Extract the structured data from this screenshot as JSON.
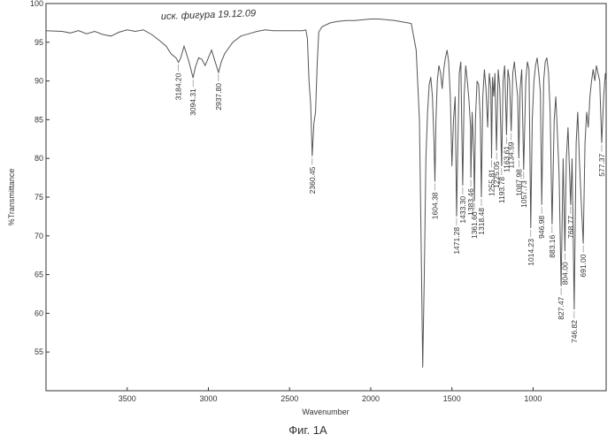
{
  "chart_data": {
    "type": "line",
    "title": "",
    "xlabel": "Wavenumber",
    "ylabel": "%Transmittance",
    "xlim": [
      4000,
      550
    ],
    "ylim": [
      50,
      100
    ],
    "x_ticks": [
      3500,
      3000,
      2500,
      2000,
      1500,
      1000
    ],
    "y_ticks": [
      55,
      60,
      65,
      70,
      75,
      80,
      85,
      90,
      95,
      100
    ],
    "grid": false,
    "legend": "none",
    "series": [
      {
        "color": "#555555",
        "x": [
          4000,
          3900,
          3850,
          3800,
          3750,
          3700,
          3650,
          3600,
          3550,
          3500,
          3450,
          3400,
          3350,
          3300,
          3260,
          3230,
          3200,
          3184.2,
          3170,
          3150,
          3120,
          3094.31,
          3080,
          3060,
          3040,
          3020,
          3000,
          2980,
          2960,
          2937.8,
          2920,
          2900,
          2850,
          2800,
          2750,
          2700,
          2650,
          2600,
          2550,
          2500,
          2450,
          2420,
          2400,
          2390,
          2380,
          2370,
          2360.45,
          2350,
          2340,
          2330,
          2320,
          2300,
          2250,
          2200,
          2150,
          2100,
          2050,
          2000,
          1950,
          1900,
          1850,
          1800,
          1770,
          1750,
          1720,
          1700,
          1690,
          1680,
          1670,
          1660,
          1650,
          1640,
          1630,
          1620,
          1610,
          1604.38,
          1598,
          1590,
          1580,
          1570,
          1560,
          1550,
          1540,
          1530,
          1520,
          1510,
          1500,
          1490,
          1480,
          1471.28,
          1465,
          1455,
          1445,
          1440,
          1433.3,
          1425,
          1415,
          1405,
          1395,
          1385,
          1383.46,
          1375,
          1365,
          1361.6,
          1355,
          1345,
          1335,
          1325,
          1318.48,
          1310,
          1300,
          1290,
          1280,
          1270,
          1260,
          1255.81,
          1250,
          1242,
          1235,
          1225.05,
          1215,
          1205,
          1193.78,
          1185,
          1175,
          1163.61,
          1155,
          1145,
          1134.59,
          1125,
          1115,
          1105,
          1095,
          1087.98,
          1080,
          1070,
          1057.73,
          1045,
          1035,
          1025,
          1014.23,
          1005,
          995,
          985,
          975,
          965,
          955,
          946.98,
          935,
          925,
          915,
          905,
          895,
          883.16,
          870,
          860,
          850,
          840,
          827.47,
          815,
          804,
          795,
          785,
          768.77,
          760,
          746.82,
          735,
          725,
          715,
          705,
          691,
          680,
          670,
          660,
          650,
          640,
          630,
          620,
          610,
          600,
          590,
          577.37,
          565,
          555,
          550
        ],
        "y": [
          96.5,
          96.4,
          96.2,
          96.5,
          96.1,
          96.4,
          96.0,
          95.8,
          96.3,
          96.6,
          96.4,
          96.6,
          96.0,
          95.2,
          94.5,
          93.5,
          93.0,
          92.4,
          93.0,
          94.5,
          92.5,
          90.4,
          91.8,
          93.0,
          92.8,
          92.0,
          93.0,
          94.0,
          92.6,
          91.1,
          92.5,
          93.5,
          95.0,
          95.8,
          96.1,
          96.4,
          96.6,
          96.5,
          96.5,
          96.5,
          96.5,
          96.5,
          96.6,
          95.5,
          90.0,
          87.0,
          80.3,
          84.5,
          86.0,
          92.0,
          96.3,
          97.0,
          97.5,
          97.7,
          97.8,
          97.8,
          97.9,
          98.0,
          98.0,
          97.9,
          97.8,
          97.6,
          97.5,
          97.4,
          94.0,
          85.0,
          70.0,
          53.0,
          65.0,
          80.0,
          86.0,
          89.5,
          90.5,
          88.0,
          82.0,
          77.0,
          85.0,
          90.0,
          92.0,
          91.0,
          89.0,
          91.5,
          93.0,
          94.0,
          92.5,
          88.0,
          79.0,
          85.0,
          88.0,
          72.5,
          80.0,
          91.0,
          92.5,
          85.0,
          76.5,
          88.0,
          92.0,
          90.0,
          87.5,
          84.0,
          77.5,
          86.0,
          80.0,
          74.5,
          85.0,
          90.0,
          89.5,
          85.0,
          75.0,
          88.0,
          91.5,
          89.0,
          84.0,
          91.0,
          89.0,
          80.0,
          90.5,
          88.0,
          91.0,
          81.0,
          91.5,
          89.0,
          79.0,
          90.0,
          92.0,
          83.0,
          91.5,
          90.0,
          83.5,
          91.0,
          92.5,
          90.0,
          88.0,
          80.0,
          89.0,
          91.5,
          78.5,
          90.0,
          92.5,
          91.5,
          71.0,
          85.0,
          90.0,
          92.0,
          93.0,
          91.0,
          88.5,
          74.0,
          90.0,
          92.5,
          93.0,
          91.0,
          86.0,
          71.5,
          85.0,
          88.0,
          83.0,
          78.0,
          63.5,
          80.0,
          68.0,
          80.0,
          84.0,
          74.0,
          80.0,
          60.5,
          82.0,
          86.0,
          80.0,
          75.0,
          69.0,
          82.0,
          86.0,
          84.0,
          88.0,
          90.0,
          91.5,
          90.0,
          92.0,
          91.0,
          90.0,
          82.0,
          88.0,
          91.0,
          90.0
        ]
      }
    ],
    "peaks": [
      {
        "x": 3184.2,
        "y": 92.4,
        "label": "3184.20"
      },
      {
        "x": 3094.31,
        "y": 90.4,
        "label": "3094.31"
      },
      {
        "x": 2937.8,
        "y": 91.1,
        "label": "2937.80"
      },
      {
        "x": 2360.45,
        "y": 80.3,
        "label": "2360.45"
      },
      {
        "x": 1604.38,
        "y": 77.0,
        "label": "1604.38"
      },
      {
        "x": 1471.28,
        "y": 72.5,
        "label": "1471.28"
      },
      {
        "x": 1433.3,
        "y": 76.5,
        "label": "1433.30"
      },
      {
        "x": 1383.46,
        "y": 77.5,
        "label": "1383.46"
      },
      {
        "x": 1361.6,
        "y": 74.5,
        "label": "1361.60"
      },
      {
        "x": 1318.48,
        "y": 75.0,
        "label": "1318.48"
      },
      {
        "x": 1255.81,
        "y": 80.0,
        "label": "1255.81"
      },
      {
        "x": 1225.05,
        "y": 81.0,
        "label": "1225.05"
      },
      {
        "x": 1193.78,
        "y": 79.0,
        "label": "1193.78"
      },
      {
        "x": 1163.61,
        "y": 83.0,
        "label": "1163.61"
      },
      {
        "x": 1134.59,
        "y": 83.5,
        "label": "1134.59"
      },
      {
        "x": 1087.98,
        "y": 80.0,
        "label": "1087.98"
      },
      {
        "x": 1057.73,
        "y": 78.5,
        "label": "1057.73"
      },
      {
        "x": 1014.23,
        "y": 71.0,
        "label": "1014.23"
      },
      {
        "x": 946.98,
        "y": 74.0,
        "label": "946.98"
      },
      {
        "x": 883.16,
        "y": 71.5,
        "label": "883.16"
      },
      {
        "x": 827.47,
        "y": 63.5,
        "label": "827.47"
      },
      {
        "x": 804.0,
        "y": 68.0,
        "label": "804.00"
      },
      {
        "x": 768.77,
        "y": 74.0,
        "label": "768.77"
      },
      {
        "x": 746.82,
        "y": 60.5,
        "label": "746.82"
      },
      {
        "x": 691.0,
        "y": 69.0,
        "label": "691.00"
      },
      {
        "x": 577.37,
        "y": 82.0,
        "label": "577.37"
      }
    ]
  },
  "handwritten_note": "иск. фигура 19.12.09",
  "figure_caption": "Фиг. 1А"
}
